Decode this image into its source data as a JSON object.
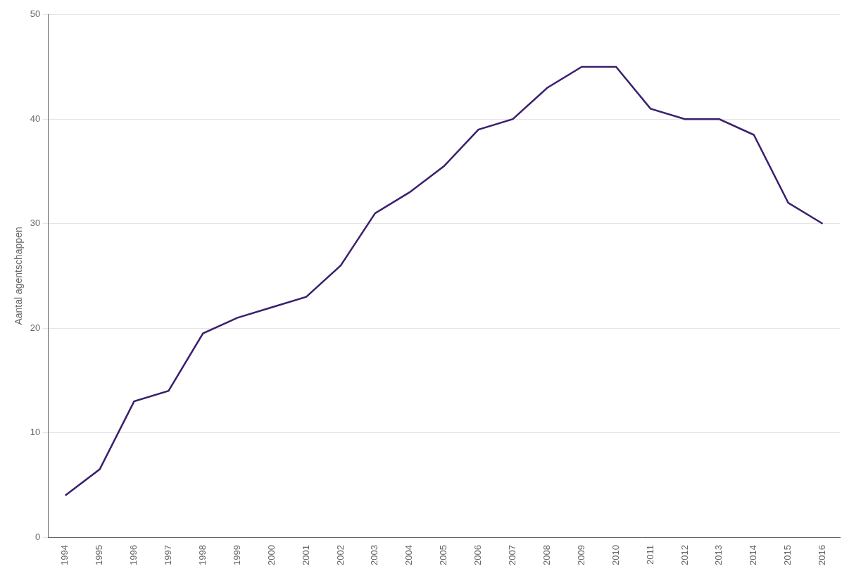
{
  "chart_data": {
    "type": "line",
    "x": [
      1994,
      1995,
      1996,
      1997,
      1998,
      1999,
      2000,
      2001,
      2002,
      2003,
      2004,
      2005,
      2006,
      2007,
      2008,
      2009,
      2010,
      2011,
      2012,
      2013,
      2014,
      2015,
      2016
    ],
    "values": [
      4,
      6.5,
      13,
      14,
      19.5,
      21,
      22,
      23,
      26,
      31,
      33,
      35.5,
      39,
      40,
      43,
      45,
      45,
      41,
      40,
      40,
      38.5,
      32,
      30
    ],
    "color": "#3B1F6E",
    "ylabel": "Aantal agentschappen",
    "ylim": [
      0,
      50
    ],
    "yticks": [
      0,
      10,
      20,
      30,
      40,
      50
    ],
    "xlim": [
      1993.5,
      2016.5
    ],
    "xticks": [
      1994,
      1995,
      1996,
      1997,
      1998,
      1999,
      2000,
      2001,
      2002,
      2003,
      2004,
      2005,
      2006,
      2007,
      2008,
      2009,
      2010,
      2011,
      2012,
      2013,
      2014,
      2015,
      2016
    ],
    "grid": "y"
  }
}
